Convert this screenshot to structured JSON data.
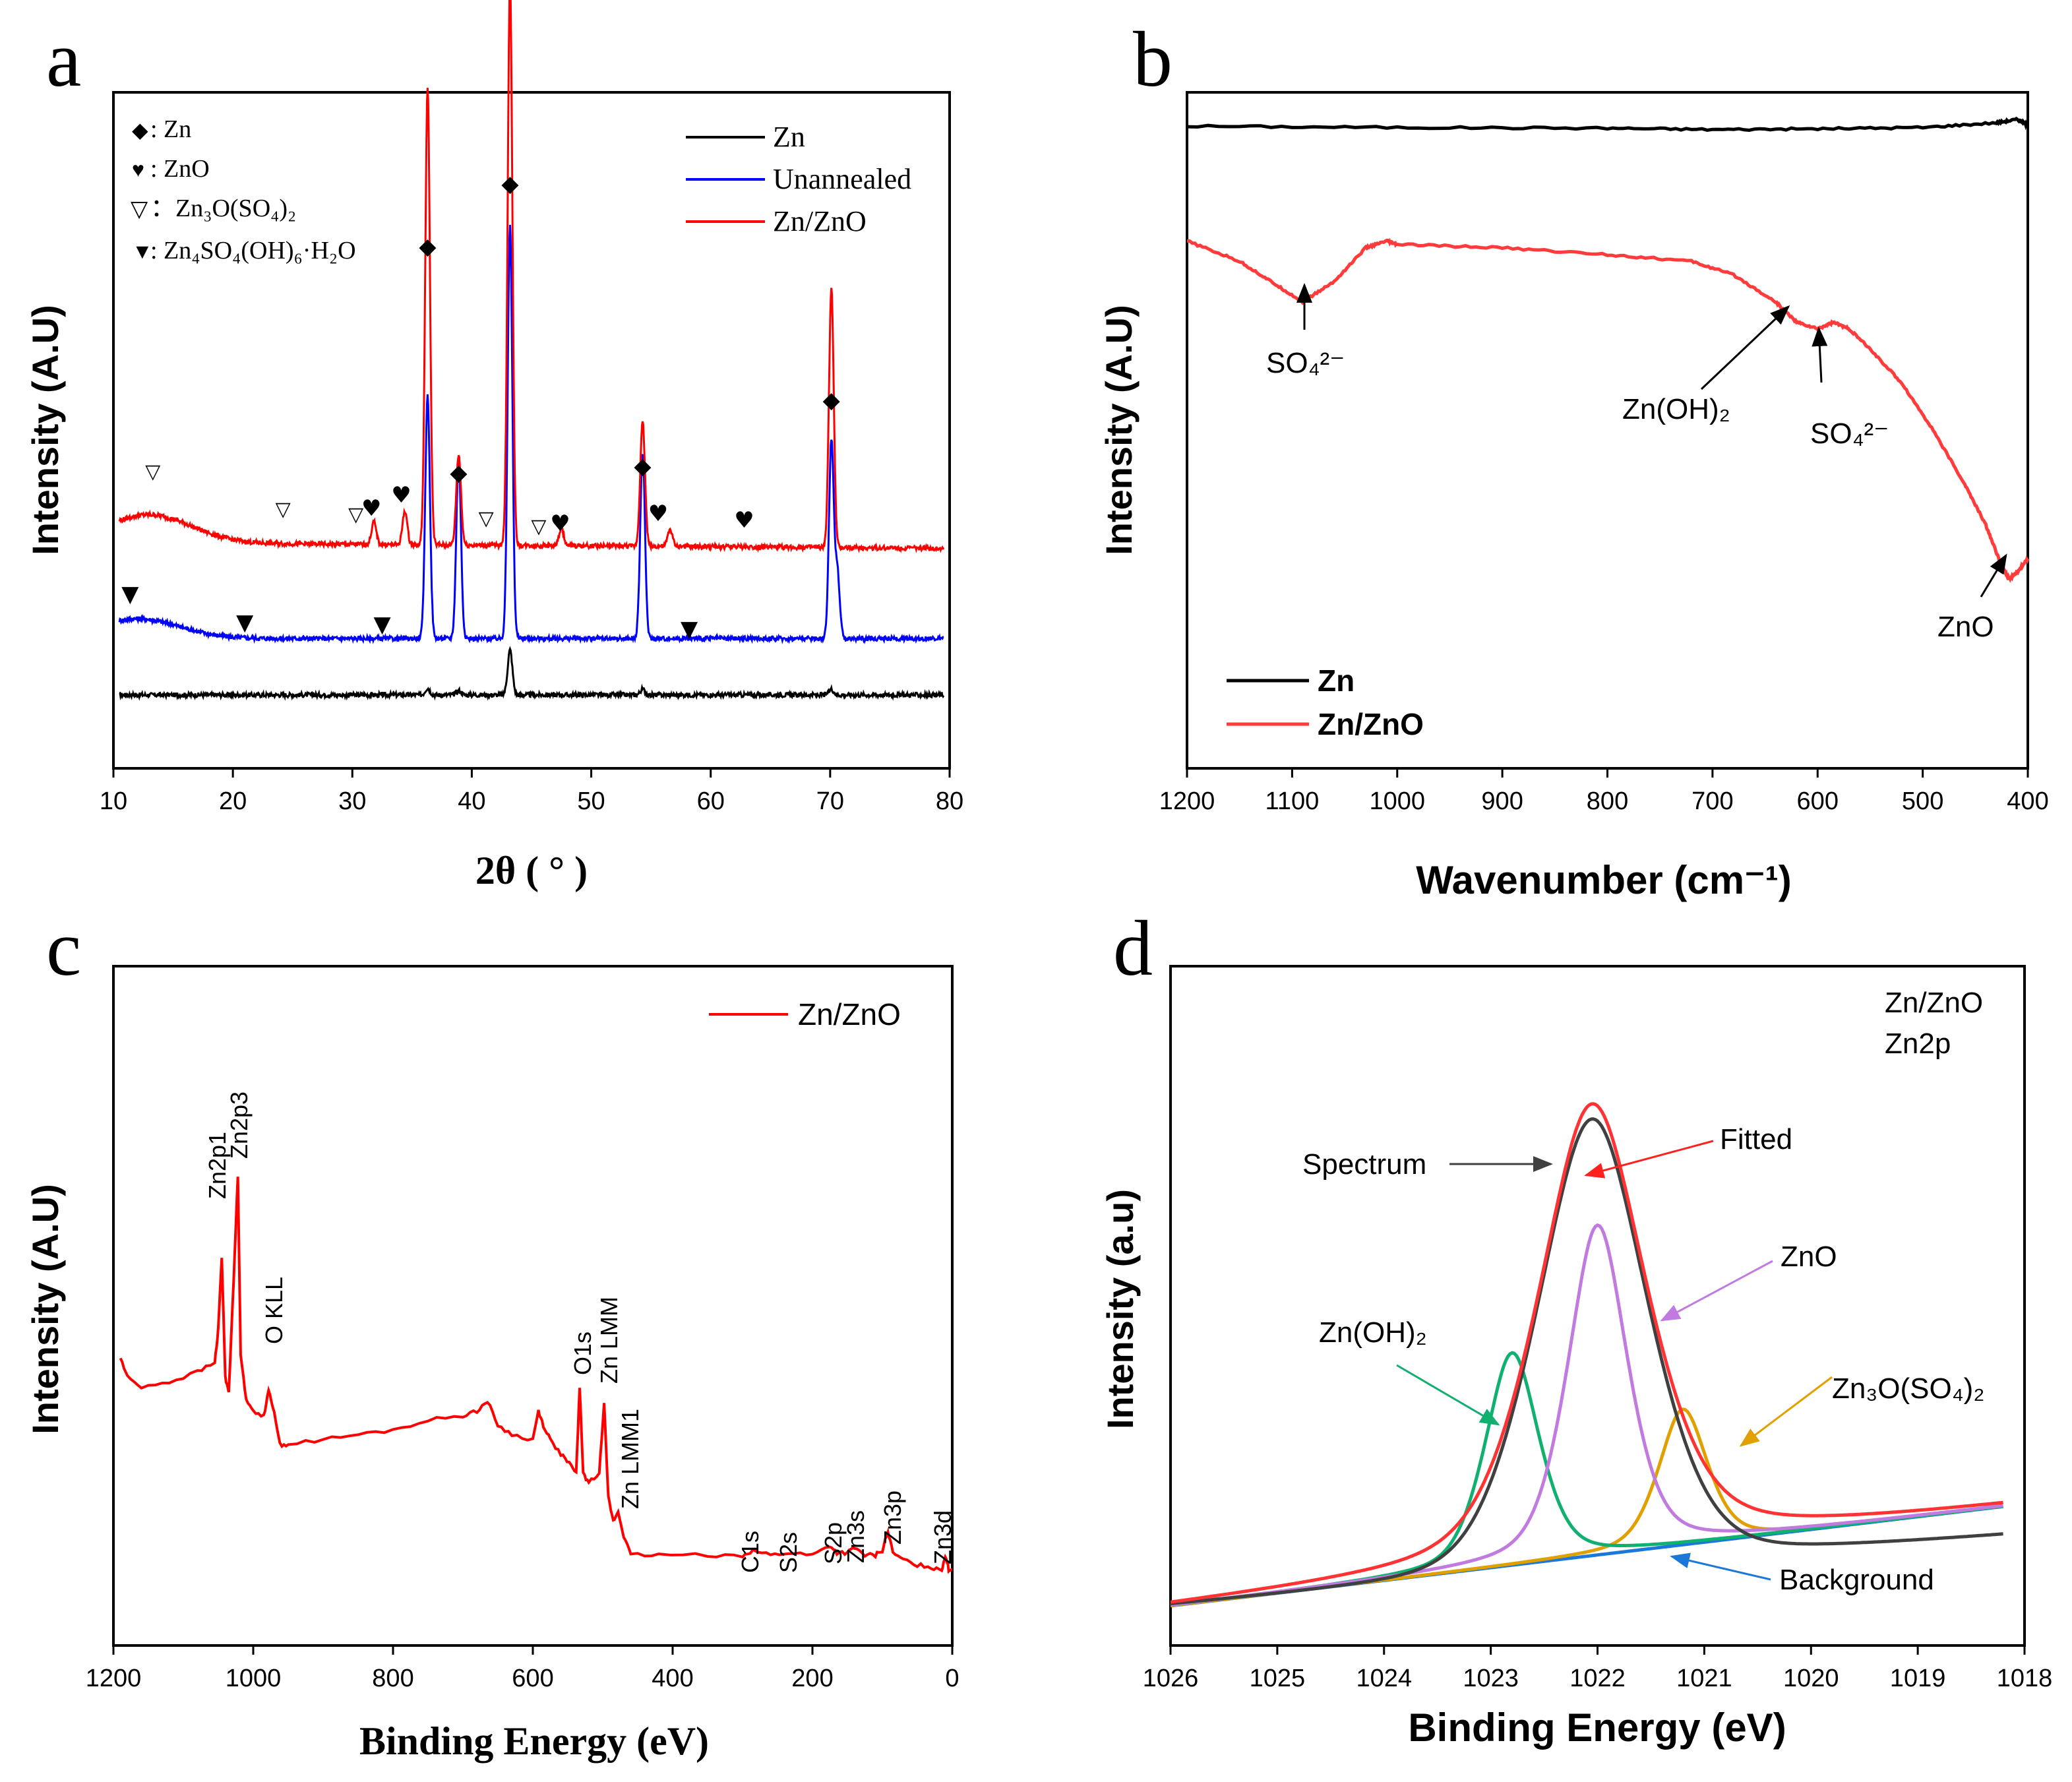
{
  "chart_data": [
    {
      "panel": "a",
      "type": "line",
      "xlabel": "2θ ( ° )",
      "ylabel": "Intensity (A.U)",
      "xlim": [
        10,
        80
      ],
      "xticks": [
        "10",
        "20",
        "30",
        "40",
        "50",
        "60",
        "70",
        "80"
      ],
      "legend": [
        {
          "name": "Zn",
          "color": "#000000"
        },
        {
          "name": "Unannealed",
          "color": "#0000ff"
        },
        {
          "name": "Zn/ZnO",
          "color": "#ff0000"
        }
      ],
      "marker_key": [
        {
          "symbol": "◆",
          "label": ": Zn"
        },
        {
          "symbol": "♥",
          "label": ": ZnO"
        },
        {
          "symbol": "▽",
          "label": "：Zn₃O(SO₄)₂"
        },
        {
          "symbol": "▼",
          "label": ": Zn₄SO₄(OH)₆·H₂O"
        }
      ],
      "series": [
        {
          "name": "Zn",
          "color": "#000000",
          "baseline": 0.06,
          "peaks": [
            [
              36.3,
              0.012
            ],
            [
              38.9,
              0.008
            ],
            [
              43.2,
              0.08
            ],
            [
              54.3,
              0.01
            ],
            [
              70.1,
              0.01
            ]
          ]
        },
        {
          "name": "Unannealed",
          "color": "#0000ff",
          "baseline": 0.16,
          "peaks": [
            [
              36.3,
              0.43
            ],
            [
              38.9,
              0.32
            ],
            [
              43.2,
              0.73
            ],
            [
              54.3,
              0.33
            ],
            [
              70.1,
              0.35
            ],
            [
              70.6,
              0.12
            ]
          ]
        },
        {
          "name": "Zn/ZnO",
          "color": "#ff0000",
          "baseline": 0.33,
          "peaks": [
            [
              36.3,
              0.81
            ],
            [
              38.9,
              0.16
            ],
            [
              43.2,
              1.0
            ],
            [
              54.3,
              0.22
            ],
            [
              70.1,
              0.46
            ],
            [
              34.4,
              0.06
            ],
            [
              31.8,
              0.04
            ],
            [
              47.5,
              0.03
            ],
            [
              56.6,
              0.03
            ]
          ]
        }
      ],
      "annotations": [
        {
          "symbol": "◆",
          "x": 36.3
        },
        {
          "symbol": "◆",
          "x": 43.2
        },
        {
          "symbol": "◆",
          "x": 38.9
        },
        {
          "symbol": "◆",
          "x": 54.3
        },
        {
          "symbol": "◆",
          "x": 70.1
        },
        {
          "symbol": "♥",
          "x": 31.6
        },
        {
          "symbol": "♥",
          "x": 34.1
        },
        {
          "symbol": "♥",
          "x": 47.4
        },
        {
          "symbol": "♥",
          "x": 55.6
        },
        {
          "symbol": "♥",
          "x": 62.8
        },
        {
          "symbol": "▽",
          "x": 13.3
        },
        {
          "symbol": "▽",
          "x": 24.2
        },
        {
          "symbol": "▽",
          "x": 30.3
        },
        {
          "symbol": "▽",
          "x": 41.2
        },
        {
          "symbol": "▽",
          "x": 45.6
        },
        {
          "symbol": "▼",
          "x": 11.4
        },
        {
          "symbol": "▼",
          "x": 21.0
        },
        {
          "symbol": "▼",
          "x": 32.5
        },
        {
          "symbol": "▼",
          "x": 58.2
        }
      ]
    },
    {
      "panel": "b",
      "type": "line",
      "xlabel": "Wavenumber (cm⁻¹)",
      "ylabel": "Intensity (A.U)",
      "xlim": [
        1200,
        400
      ],
      "xticks": [
        "1200",
        "1100",
        "1000",
        "900",
        "800",
        "700",
        "600",
        "500",
        "400"
      ],
      "legend": [
        {
          "name": "Zn",
          "color": "#000000"
        },
        {
          "name": "Zn/ZnO",
          "color": "#ff3b3b"
        }
      ],
      "series": [
        {
          "name": "Zn",
          "color": "#000000",
          "x": [
            1200,
            1000,
            800,
            700,
            600,
            500,
            430,
            410,
            400
          ],
          "y": [
            0.95,
            0.948,
            0.947,
            0.945,
            0.946,
            0.948,
            0.955,
            0.96,
            0.952
          ]
        },
        {
          "name": "Zn/ZnO",
          "color": "#ff3b3b",
          "x": [
            1200,
            1150,
            1120,
            1090,
            1060,
            1030,
            1010,
            1000,
            900,
            800,
            720,
            680,
            640,
            620,
            600,
            585,
            570,
            550,
            520,
            490,
            460,
            440,
            425,
            418,
            410,
            400
          ],
          "y": [
            0.78,
            0.75,
            0.72,
            0.69,
            0.72,
            0.77,
            0.78,
            0.775,
            0.77,
            0.76,
            0.75,
            0.73,
            0.69,
            0.66,
            0.65,
            0.66,
            0.65,
            0.62,
            0.57,
            0.5,
            0.42,
            0.36,
            0.3,
            0.28,
            0.29,
            0.31
          ]
        }
      ],
      "annotations": [
        {
          "label": "SO₄²⁻",
          "x": 1090
        },
        {
          "label": "Zn(OH)₂",
          "x": 630
        },
        {
          "label": "SO₄²⁻",
          "x": 595
        },
        {
          "label": "ZnO",
          "x": 418
        }
      ]
    },
    {
      "panel": "c",
      "type": "line",
      "xlabel": "Binding Energy (eV)",
      "ylabel": "Intensity (A.U)",
      "xlim": [
        1200,
        0
      ],
      "xticks": [
        "1200",
        "1000",
        "800",
        "600",
        "400",
        "200",
        "0"
      ],
      "legend": [
        {
          "name": "Zn/ZnO",
          "color": "#ff0000"
        }
      ],
      "series": [
        {
          "name": "Zn/ZnO",
          "color": "#ff0000",
          "x": [
            1190,
            1180,
            1160,
            1120,
            1080,
            1055,
            1050,
            1045,
            1040,
            1035,
            1028,
            1022,
            1018,
            1010,
            1000,
            985,
            978,
            970,
            962,
            950,
            900,
            850,
            800,
            750,
            700,
            680,
            665,
            650,
            630,
            600,
            592,
            585,
            575,
            560,
            548,
            538,
            533,
            528,
            520,
            505,
            498,
            492,
            485,
            478,
            470,
            460,
            420,
            350,
            300,
            285,
            260,
            235,
            200,
            175,
            165,
            150,
            140,
            125,
            110,
            100,
            92,
            85,
            70,
            50,
            30,
            15,
            10,
            5,
            0
          ],
          "y": [
            0.44,
            0.4,
            0.38,
            0.39,
            0.41,
            0.43,
            0.5,
            0.65,
            0.4,
            0.37,
            0.6,
            0.82,
            0.45,
            0.35,
            0.33,
            0.32,
            0.37,
            0.33,
            0.26,
            0.26,
            0.27,
            0.28,
            0.29,
            0.31,
            0.32,
            0.33,
            0.35,
            0.3,
            0.28,
            0.27,
            0.33,
            0.3,
            0.27,
            0.24,
            0.22,
            0.2,
            0.38,
            0.2,
            0.18,
            0.2,
            0.35,
            0.15,
            0.1,
            0.12,
            0.07,
            0.03,
            0.03,
            0.03,
            0.03,
            0.04,
            0.03,
            0.035,
            0.03,
            0.05,
            0.035,
            0.035,
            0.045,
            0.03,
            0.03,
            0.04,
            0.08,
            0.035,
            0.02,
            0.01,
            0.005,
            0.0,
            0.03,
            0.0,
            0.0
          ]
        }
      ],
      "annotations": [
        "Zn2p1",
        "Zn2p3",
        "O KLL",
        "O1s",
        "Zn LMM",
        "Zn LMM1",
        "C1s",
        "S2s",
        "S2p",
        "Zn3s",
        "Zn3p",
        "Zn3d"
      ]
    },
    {
      "panel": "d",
      "type": "line",
      "xlabel": "Binding Energy (eV)",
      "ylabel": "Intensity (a.u)",
      "xlim": [
        1026,
        1018
      ],
      "xticks": [
        "1026",
        "1025",
        "1024",
        "1023",
        "1022",
        "1021",
        "1020",
        "1019",
        "1018"
      ],
      "inset_text": [
        "Zn/ZnO",
        "Zn2p"
      ],
      "series": [
        {
          "name": "Spectrum",
          "color": "#404040",
          "center": 1022.05,
          "height": 1.0,
          "width": 0.95
        },
        {
          "name": "Fitted",
          "color": "#ff3333",
          "center": 1022.05,
          "height": 1.0,
          "width": 1.0
        },
        {
          "name": "ZnO",
          "color": "#c07ae0",
          "center": 1022.0,
          "height": 0.73,
          "width": 0.55
        },
        {
          "name": "Zn(OH)₂",
          "color": "#10b070",
          "center": 1022.8,
          "height": 0.47,
          "width": 0.5
        },
        {
          "name": "Zn₃O(SO₄)₂",
          "color": "#e0a000",
          "center": 1021.2,
          "height": 0.3,
          "width": 0.45
        },
        {
          "name": "Background",
          "color": "#1a78d8",
          "from": [
            1026,
            0.0
          ],
          "to": [
            1018.2,
            0.22
          ]
        }
      ],
      "annotations": [
        "Spectrum",
        "Fitted",
        "ZnO",
        "Zn(OH)₂",
        "Zn₃O(SO₄)₂",
        "Background"
      ]
    }
  ],
  "panels": {
    "a": {
      "letter": "a",
      "xlabel": "2θ ( ° )",
      "ylabel": "Intensity (A.U)",
      "key": [
        {
          "sym": "◆",
          "text": ": Zn"
        },
        {
          "sym": "♥",
          "text": ": ZnO"
        },
        {
          "sym": "▽",
          "text": "：Zn₃O(SO₄)₂"
        },
        {
          "sym": "▼",
          "text": ": Zn₄SO₄(OH)₆·H₂O"
        }
      ],
      "legend": [
        "Zn",
        "Unannealed",
        "Zn/ZnO"
      ]
    },
    "b": {
      "letter": "b",
      "xlabel": "Wavenumber (cm⁻¹)",
      "ylabel": "Intensity (A.U)",
      "legend": [
        "Zn",
        "Zn/ZnO"
      ],
      "ann": [
        "SO₄²⁻",
        "Zn(OH)₂",
        "SO₄²⁻",
        "ZnO"
      ]
    },
    "c": {
      "letter": "c",
      "xlabel": "Binding Energy (eV)",
      "ylabel": "Intensity (A.U)",
      "legend": [
        "Zn/ZnO"
      ],
      "peaks": [
        "Zn2p1",
        "Zn2p3",
        "O KLL",
        "O1s",
        "Zn LMM",
        "Zn LMM1",
        "C1s",
        "S2s",
        "S2p",
        "Zn3s",
        "Zn3p",
        "Zn3d"
      ]
    },
    "d": {
      "letter": "d",
      "xlabel": "Binding Energy (eV)",
      "ylabel": "Intensity (a.u)",
      "inset": [
        "Zn/ZnO",
        "Zn2p"
      ],
      "ann": [
        "Spectrum",
        "Fitted",
        "ZnO",
        "Zn(OH)₂",
        "Zn₃O(SO₄)₂",
        "Background"
      ]
    }
  }
}
